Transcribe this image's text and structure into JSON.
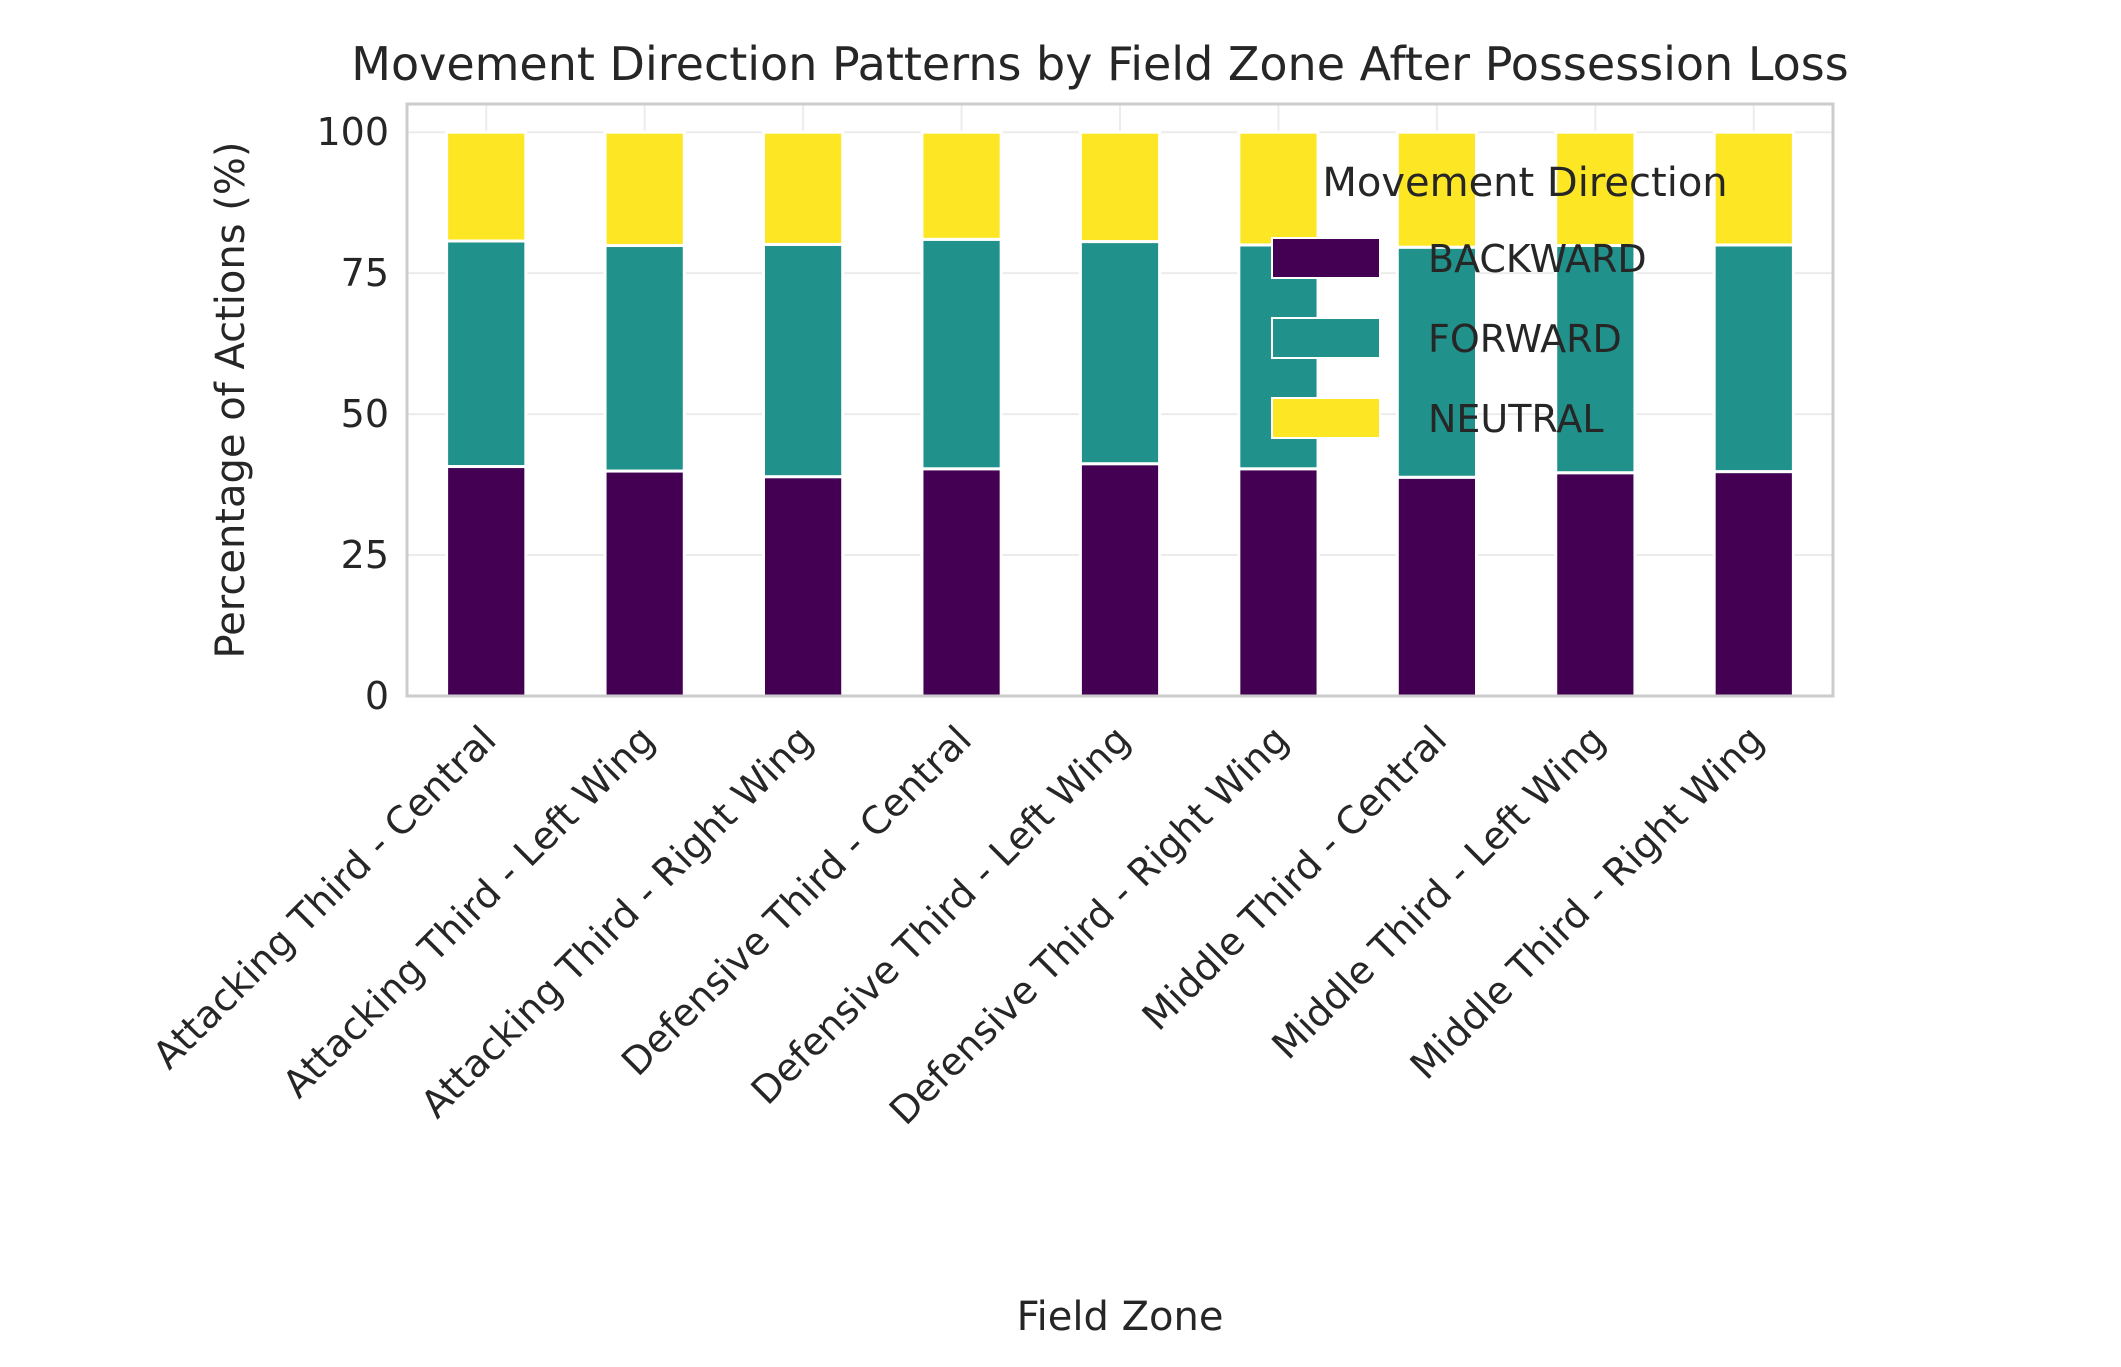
{
  "chart_data": {
    "type": "bar",
    "stacked": true,
    "title": "Movement Direction Patterns by Field Zone After Possession Loss",
    "xlabel": "Field Zone",
    "ylabel": "Percentage of Actions (%)",
    "ylim": [
      0,
      105
    ],
    "yticks": [
      "0",
      "25",
      "50",
      "75",
      "100"
    ],
    "grid": true,
    "legend": {
      "title": "Movement Direction",
      "placement": "top-right"
    },
    "categories": [
      "Attacking Third - Central",
      "Attacking Third - Left Wing",
      "Attacking Third - Right Wing",
      "Defensive Third - Central",
      "Defensive Third - Left Wing",
      "Defensive Third - Right Wing",
      "Middle Third - Central",
      "Middle Third - Left Wing",
      "Middle Third - Right Wing"
    ],
    "series": [
      {
        "name": "BACKWARD",
        "color": "#440154",
        "values": [
          40.7,
          39.9,
          38.9,
          40.3,
          41.2,
          40.3,
          38.8,
          39.6,
          39.8
        ]
      },
      {
        "name": "FORWARD",
        "color": "#21918c",
        "values": [
          40.0,
          40.0,
          41.2,
          40.7,
          39.4,
          39.7,
          40.8,
          40.3,
          40.2
        ]
      },
      {
        "name": "NEUTRAL",
        "color": "#fde725",
        "values": [
          19.3,
          20.1,
          19.9,
          19.0,
          19.4,
          20.0,
          20.4,
          20.1,
          20.0
        ]
      }
    ]
  }
}
